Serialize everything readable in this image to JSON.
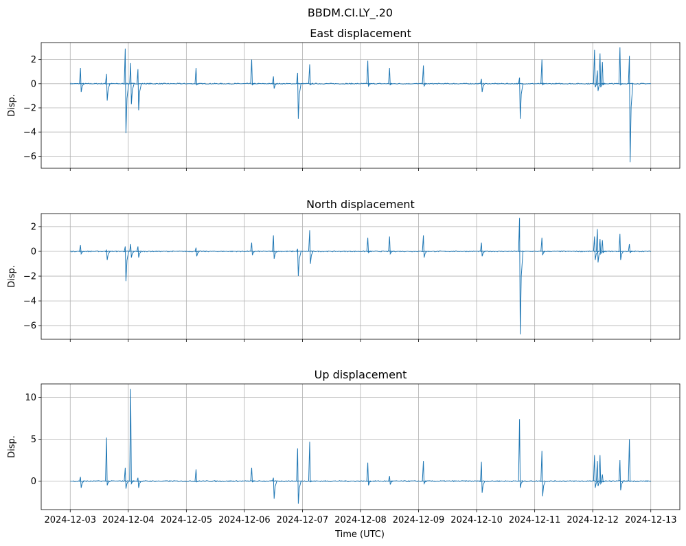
{
  "chart_data": {
    "type": "line",
    "suptitle": "BBDM.CI.LY_.20",
    "xlabel": "Time (UTC)",
    "xlim": [
      "2024-12-02T12:00",
      "2024-12-13T12:00"
    ],
    "x_range": [
      "2024-12-03T00:00",
      "2024-12-13T00:00"
    ],
    "xticks": [
      "2024-12-03",
      "2024-12-04",
      "2024-12-05",
      "2024-12-06",
      "2024-12-07",
      "2024-12-08",
      "2024-12-09",
      "2024-12-10",
      "2024-12-11",
      "2024-12-12",
      "2024-12-13"
    ],
    "grid": true,
    "line_color": "#1f77b4",
    "grid_color": "#b0b0b0",
    "panels": [
      {
        "title": "East displacement",
        "ylabel": "Disp.",
        "ylim": [
          -7.0,
          3.4
        ],
        "yticks": [
          2,
          0,
          -2,
          -4,
          -6
        ],
        "ytick_labels": [
          "2",
          "0",
          "−2",
          "−4",
          "−6"
        ],
        "spikes": [
          {
            "t": "2024-12-03T04:15",
            "max": 1.3,
            "min": -0.7
          },
          {
            "t": "2024-12-03T15:00",
            "max": 0.8,
            "min": -1.4
          },
          {
            "t": "2024-12-03T22:45",
            "max": 2.9,
            "min": -4.1
          },
          {
            "t": "2024-12-04T01:00",
            "max": 1.7,
            "min": -1.7
          },
          {
            "t": "2024-12-04T04:00",
            "max": 1.2,
            "min": -2.2
          },
          {
            "t": "2024-12-05T04:00",
            "max": 1.3,
            "min": -0.1
          },
          {
            "t": "2024-12-06T03:00",
            "max": 2.0,
            "min": -0.1
          },
          {
            "t": "2024-12-06T12:00",
            "max": 0.6,
            "min": -0.4
          },
          {
            "t": "2024-12-06T22:00",
            "max": 0.9,
            "min": -2.9
          },
          {
            "t": "2024-12-07T03:00",
            "max": 1.6,
            "min": -0.1
          },
          {
            "t": "2024-12-08T03:00",
            "max": 1.9,
            "min": -0.2
          },
          {
            "t": "2024-12-08T12:00",
            "max": 1.3,
            "min": -0.1
          },
          {
            "t": "2024-12-09T02:00",
            "max": 1.5,
            "min": -0.2
          },
          {
            "t": "2024-12-10T02:00",
            "max": 0.4,
            "min": -0.7
          },
          {
            "t": "2024-12-10T17:45",
            "max": 0.5,
            "min": -2.9
          },
          {
            "t": "2024-12-11T03:00",
            "max": 2.0,
            "min": -0.1
          },
          {
            "t": "2024-12-12T00:45",
            "max": 2.8,
            "min": -0.3
          },
          {
            "t": "2024-12-12T01:55",
            "max": 1.1,
            "min": -0.6
          },
          {
            "t": "2024-12-12T03:00",
            "max": 2.5,
            "min": -0.3
          },
          {
            "t": "2024-12-12T04:00",
            "max": 1.8,
            "min": -0.1
          },
          {
            "t": "2024-12-12T11:15",
            "max": 3.0,
            "min": -0.1
          },
          {
            "t": "2024-12-12T15:10",
            "max": 2.3,
            "min": -6.5
          }
        ]
      },
      {
        "title": "North displacement",
        "ylabel": "Disp.",
        "ylim": [
          -7.1,
          3.05
        ],
        "yticks": [
          2,
          0,
          -2,
          -4,
          -6
        ],
        "ytick_labels": [
          "2",
          "0",
          "−2",
          "−4",
          "−6"
        ],
        "spikes": [
          {
            "t": "2024-12-03T04:15",
            "max": 0.5,
            "min": -0.2
          },
          {
            "t": "2024-12-03T15:00",
            "max": 0.1,
            "min": -0.7
          },
          {
            "t": "2024-12-03T22:45",
            "max": 0.4,
            "min": -2.4
          },
          {
            "t": "2024-12-04T01:00",
            "max": 0.6,
            "min": -0.5
          },
          {
            "t": "2024-12-04T04:00",
            "max": 0.4,
            "min": -0.5
          },
          {
            "t": "2024-12-05T04:00",
            "max": 0.3,
            "min": -0.4
          },
          {
            "t": "2024-12-06T03:00",
            "max": 0.7,
            "min": -0.3
          },
          {
            "t": "2024-12-06T12:00",
            "max": 1.3,
            "min": -0.6
          },
          {
            "t": "2024-12-06T22:00",
            "max": 0.2,
            "min": -2.0
          },
          {
            "t": "2024-12-07T03:00",
            "max": 1.7,
            "min": -1.0
          },
          {
            "t": "2024-12-08T03:00",
            "max": 1.1,
            "min": -0.1
          },
          {
            "t": "2024-12-08T12:00",
            "max": 1.2,
            "min": -0.2
          },
          {
            "t": "2024-12-09T02:00",
            "max": 1.3,
            "min": -0.5
          },
          {
            "t": "2024-12-10T02:00",
            "max": 0.7,
            "min": -0.4
          },
          {
            "t": "2024-12-10T17:45",
            "max": 2.7,
            "min": -6.7
          },
          {
            "t": "2024-12-11T03:00",
            "max": 1.1,
            "min": -0.3
          },
          {
            "t": "2024-12-12T00:45",
            "max": 1.2,
            "min": -0.7
          },
          {
            "t": "2024-12-12T01:55",
            "max": 1.8,
            "min": -0.9
          },
          {
            "t": "2024-12-12T03:00",
            "max": 1.0,
            "min": -0.2
          },
          {
            "t": "2024-12-12T04:00",
            "max": 0.9,
            "min": -0.1
          },
          {
            "t": "2024-12-12T11:15",
            "max": 1.4,
            "min": -0.7
          },
          {
            "t": "2024-12-12T15:10",
            "max": 0.6,
            "min": -0.1
          }
        ]
      },
      {
        "title": "Up displacement",
        "ylabel": "Disp.",
        "ylim": [
          -3.4,
          11.6
        ],
        "yticks": [
          10,
          5,
          0
        ],
        "ytick_labels": [
          "10",
          "5",
          "0"
        ],
        "spikes": [
          {
            "t": "2024-12-03T04:15",
            "max": 0.5,
            "min": -0.8
          },
          {
            "t": "2024-12-03T15:00",
            "max": 5.2,
            "min": -0.5
          },
          {
            "t": "2024-12-03T22:45",
            "max": 1.6,
            "min": -0.9
          },
          {
            "t": "2024-12-04T01:00",
            "max": 11.0,
            "min": -0.3
          },
          {
            "t": "2024-12-04T04:00",
            "max": 0.4,
            "min": -0.8
          },
          {
            "t": "2024-12-05T04:00",
            "max": 1.4,
            "min": -0.1
          },
          {
            "t": "2024-12-06T03:00",
            "max": 1.6,
            "min": -0.1
          },
          {
            "t": "2024-12-06T12:00",
            "max": 0.4,
            "min": -2.1
          },
          {
            "t": "2024-12-06T22:00",
            "max": 3.9,
            "min": -2.7
          },
          {
            "t": "2024-12-07T03:00",
            "max": 4.7,
            "min": -0.1
          },
          {
            "t": "2024-12-08T03:00",
            "max": 2.2,
            "min": -0.5
          },
          {
            "t": "2024-12-08T12:00",
            "max": 0.6,
            "min": -0.4
          },
          {
            "t": "2024-12-09T02:00",
            "max": 2.4,
            "min": -0.3
          },
          {
            "t": "2024-12-10T02:00",
            "max": 2.3,
            "min": -1.4
          },
          {
            "t": "2024-12-10T17:45",
            "max": 7.4,
            "min": -0.8
          },
          {
            "t": "2024-12-11T03:00",
            "max": 3.6,
            "min": -1.8
          },
          {
            "t": "2024-12-12T00:45",
            "max": 3.1,
            "min": -0.8
          },
          {
            "t": "2024-12-12T01:55",
            "max": 2.4,
            "min": -0.6
          },
          {
            "t": "2024-12-12T03:00",
            "max": 3.1,
            "min": -0.3
          },
          {
            "t": "2024-12-12T04:00",
            "max": 0.8,
            "min": -0.1
          },
          {
            "t": "2024-12-12T11:15",
            "max": 2.5,
            "min": -1.1
          },
          {
            "t": "2024-12-12T15:10",
            "max": 5.0,
            "min": 0.0
          }
        ]
      }
    ]
  }
}
